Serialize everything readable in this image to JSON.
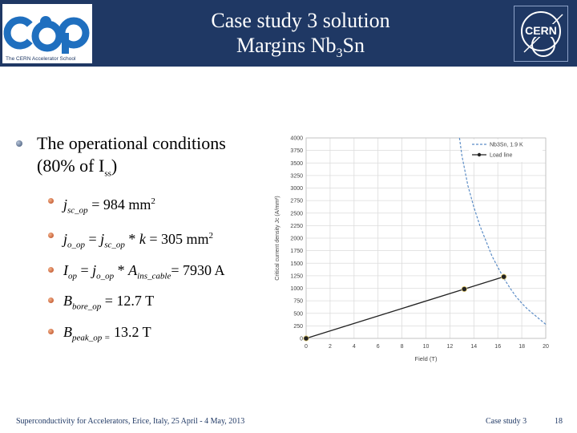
{
  "header": {
    "logo_tagline": "The CERN Accelerator School",
    "title_line1": "Case study 3 solution",
    "title_line2_pre": "Margins Nb",
    "title_line2_sub": "3",
    "title_line2_post": "Sn",
    "cern_logo_text": "CERN"
  },
  "content": {
    "bullet1_pre": "The operational conditions",
    "bullet1_post": "(80% of I",
    "bullet1_sub": "ss",
    "bullet1_close": ")",
    "sub1": {
      "j": "j",
      "sub": "sc_op",
      "val": " = 984 mm",
      "sup": "2"
    },
    "sub2": {
      "j": "j",
      "sub": "o_op",
      "mid": " = ",
      "j2": "j",
      "sub2": "sc_op",
      "mid2": " * ",
      "k": "k",
      "val": " = 305 mm",
      "sup": "2"
    },
    "sub3": {
      "i": "I",
      "sub": "op",
      "mid": " = ",
      "j": "j",
      "sub2": "o_op",
      "mid2": " * ",
      "a": "A",
      "sub3": "ins_cable",
      "val": "= 7930 A"
    },
    "sub4": {
      "b": "B",
      "sub": "bore_op",
      "val": " = 12.7 T"
    },
    "sub5": {
      "b": "B",
      "sub": "peak_op =",
      "val": " 13.2 T"
    }
  },
  "chart_data": {
    "type": "line",
    "xlabel": "Field (T)",
    "ylabel": "Critical current density Jc (A/mm²)",
    "xlim": [
      0,
      20
    ],
    "ylim": [
      0,
      4000
    ],
    "xticks": [
      "0",
      "2",
      "4",
      "6",
      "8",
      "10",
      "12",
      "14",
      "16",
      "18",
      "20"
    ],
    "yticks": [
      "0",
      "250",
      "500",
      "750",
      "1000",
      "1250",
      "1500",
      "1750",
      "2000",
      "2250",
      "2500",
      "2750",
      "3000",
      "3250",
      "3500",
      "3750",
      "4000"
    ],
    "grid": true,
    "legend_position": "top-right",
    "series": [
      {
        "name": "Nb3Sn, 1.9 K",
        "style": "dashed",
        "color": "#5b8cc6",
        "x": [
          12.8,
          13.0,
          13.5,
          14.0,
          14.5,
          15.0,
          15.5,
          16.0,
          16.5,
          17.0,
          17.5,
          18.0,
          18.5,
          19.0,
          19.5,
          20.0
        ],
        "y": [
          4000,
          3650,
          3050,
          2620,
          2250,
          1950,
          1650,
          1420,
          1200,
          1010,
          840,
          700,
          580,
          480,
          380,
          280
        ]
      },
      {
        "name": "Load line",
        "style": "solid",
        "color": "#222222",
        "x": [
          0,
          13.2,
          16.5
        ],
        "y": [
          0,
          984,
          1230
        ],
        "markers": [
          0,
          13.2,
          16.5
        ]
      }
    ]
  },
  "footer": {
    "left": "Superconductivity for Accelerators, Erice, Italy, 25 April - 4 May, 2013",
    "center": "Case study 3",
    "page": "18"
  }
}
